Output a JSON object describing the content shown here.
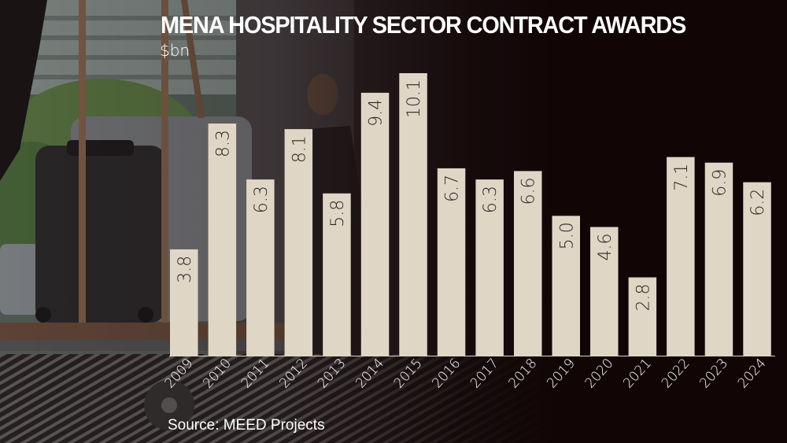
{
  "chart_data": {
    "type": "bar",
    "title": "MENA HOSPITALITY SECTOR CONTRACT AWARDS",
    "unit_label": "$bn",
    "source": "Source: MEED Projects",
    "xlabel": "",
    "ylabel": "$bn",
    "ylim": [
      0,
      10.1
    ],
    "grid": false,
    "categories": [
      "2009",
      "2010",
      "2011",
      "2012",
      "2013",
      "2014",
      "2015",
      "2016",
      "2017",
      "2018",
      "2019",
      "2020",
      "2021",
      "2022",
      "2023",
      "2024"
    ],
    "values": [
      3.8,
      8.3,
      6.3,
      8.1,
      5.8,
      9.4,
      10.1,
      6.7,
      6.3,
      6.6,
      5.0,
      4.6,
      2.8,
      7.1,
      6.9,
      6.2
    ],
    "value_labels": [
      "3.8",
      "8.3",
      "6.3",
      "8.1",
      "5.8",
      "9.4",
      "10.1",
      "6.7",
      "6.3",
      "6.6",
      "5.0",
      "4.6",
      "2.8",
      "7.1",
      "6.9",
      "6.2"
    ],
    "bar_color": "#e0d6c6",
    "label_color": "#2a2522",
    "text_color": "#ffffff"
  }
}
